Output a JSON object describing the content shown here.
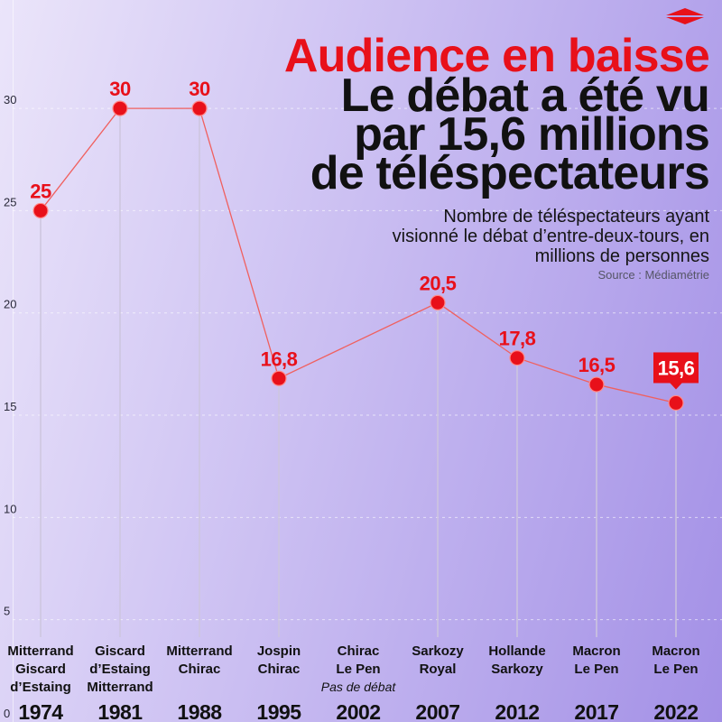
{
  "colors": {
    "accent": "#e8101a",
    "series_line": "#f0605f",
    "point_outline": "#ff8a8a",
    "text": "#111111",
    "background_light": "#ebe5fa",
    "background_mid": "#cbbff2",
    "background_dark": "#a390e6"
  },
  "logo_icon": "red-diamond-icon",
  "chart_data": {
    "type": "line",
    "kicker": "Audience en baisse",
    "title": [
      "Le débat a été vu",
      "par 15,6 millions",
      "de téléspectateurs"
    ],
    "subtitle": [
      "Nombre de téléspectateurs ayant",
      "visionné le débat d’entre-deux-tours, en",
      "millions de personnes"
    ],
    "source": "Source : Médiamétrie",
    "categories": [
      "1974",
      "1981",
      "1988",
      "1995",
      "2002",
      "2007",
      "2012",
      "2017",
      "2022"
    ],
    "candidates": [
      [
        "Mitterrand",
        "Giscard",
        "d’Estaing"
      ],
      [
        "Giscard",
        "d’Estaing",
        "Mitterrand"
      ],
      [
        "Mitterrand",
        "Chirac"
      ],
      [
        "Jospin",
        "Chirac"
      ],
      [
        "Chirac",
        "Le Pen"
      ],
      [
        "Sarkozy",
        "Royal"
      ],
      [
        "Hollande",
        "Sarkozy"
      ],
      [
        "Macron",
        "Le Pen"
      ],
      [
        "Macron",
        "Le Pen"
      ]
    ],
    "values": [
      25,
      30,
      30,
      16.8,
      null,
      20.5,
      17.8,
      16.5,
      15.6
    ],
    "value_labels": [
      "25",
      "30",
      "30",
      "16,8",
      null,
      "20,5",
      "17,8",
      "16,5",
      "15,6"
    ],
    "annotation": {
      "category_index": 4,
      "text": "Pas de débat"
    },
    "highlight_index": 8,
    "yticks": [
      0,
      5,
      10,
      15,
      20,
      25,
      30
    ],
    "ylim": [
      0,
      35.3
    ],
    "grid": true
  }
}
